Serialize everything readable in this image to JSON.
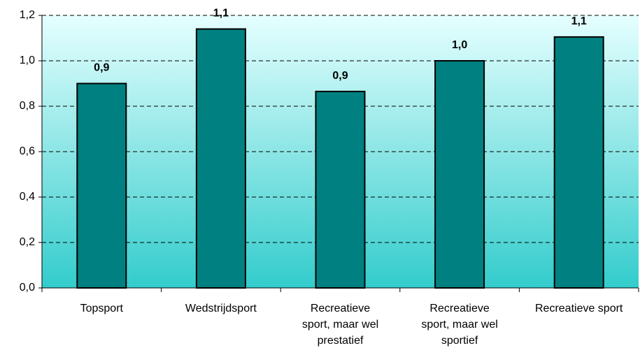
{
  "chart_data": {
    "type": "bar",
    "categories": [
      "Topsport",
      "Wedstrijdsport",
      "Recreatieve sport, maar wel prestatief",
      "Recreatieve sport, maar wel sportief",
      "Recreatieve sport"
    ],
    "values": [
      0.9,
      1.14,
      0.865,
      1.0,
      1.105
    ],
    "value_labels": [
      "0,9",
      "1,1",
      "0,9",
      "1,0",
      "1,1"
    ],
    "color": "#008080",
    "ylim": [
      0,
      1.2
    ],
    "yticks": [
      {
        "value": 0,
        "label": "0,0"
      },
      {
        "value": 0.2,
        "label": "0,2"
      },
      {
        "value": 0.4,
        "label": "0,4"
      },
      {
        "value": 0.6,
        "label": "0,6"
      },
      {
        "value": 0.8,
        "label": "0,8"
      },
      {
        "value": 1.0,
        "label": "1,0"
      },
      {
        "value": 1.2,
        "label": "1,2"
      }
    ],
    "grid": true
  }
}
